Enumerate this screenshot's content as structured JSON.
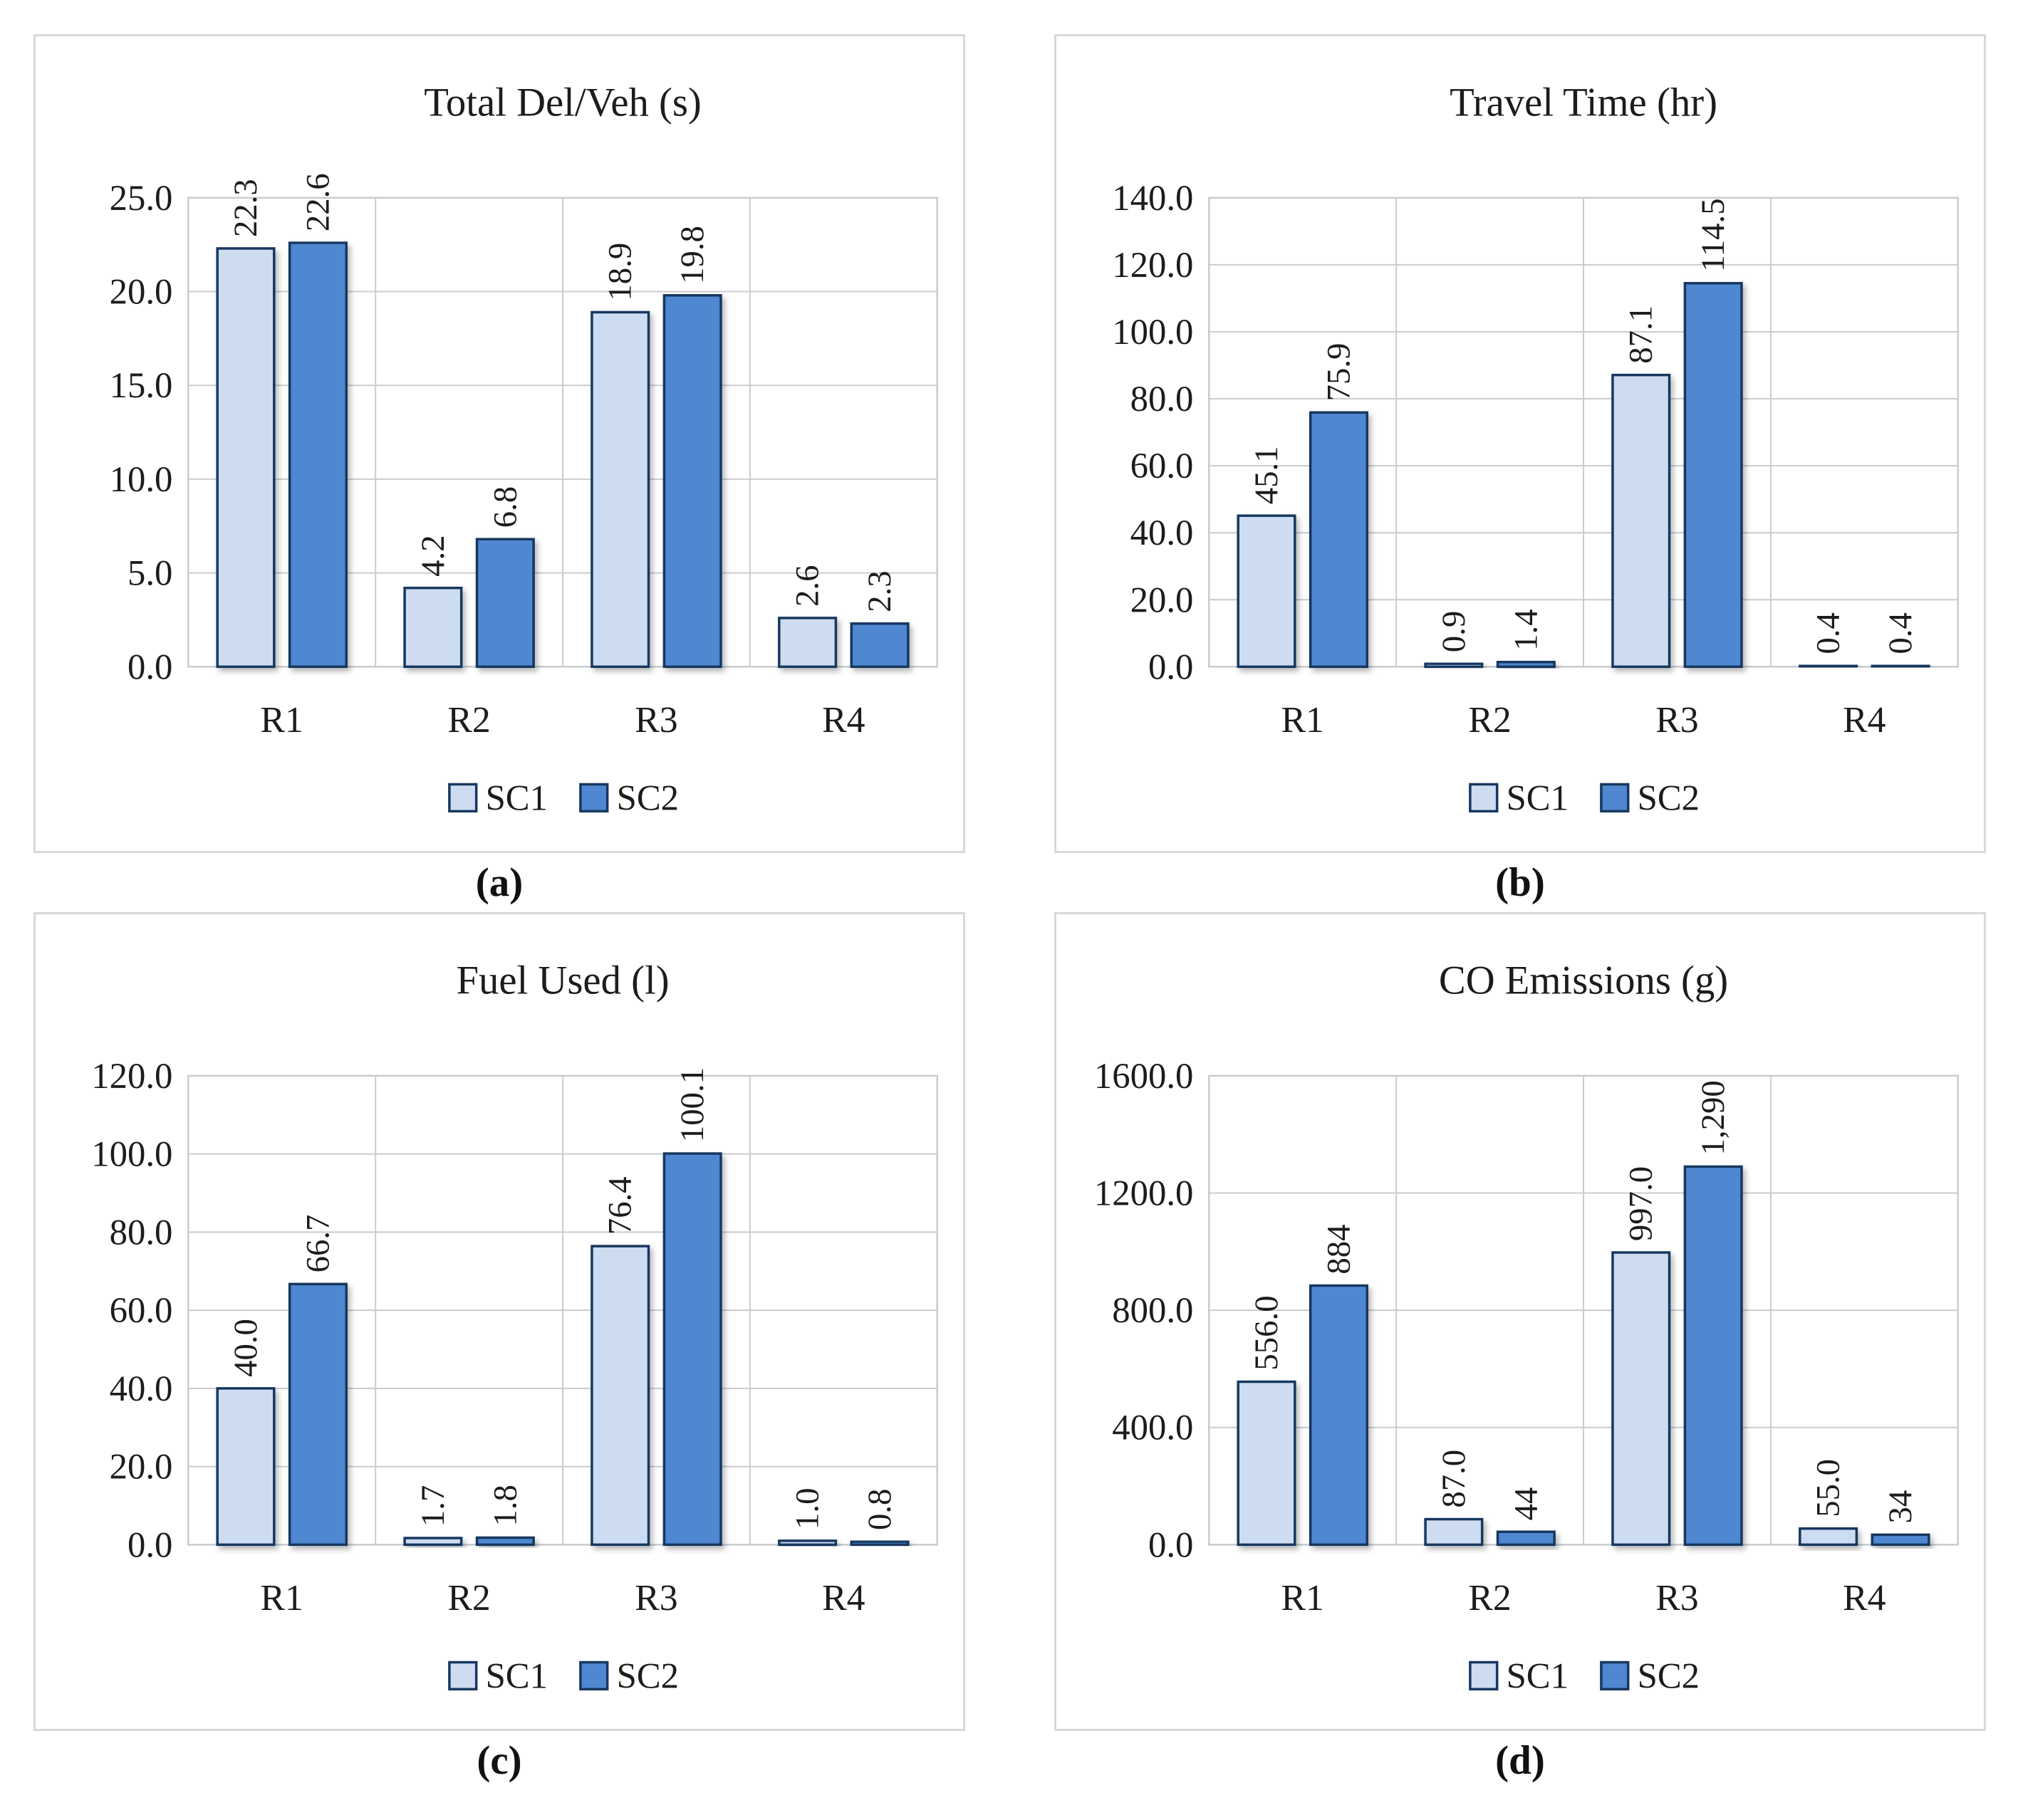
{
  "colors": {
    "sc1_fill": "#cddcf1",
    "sc2_fill": "#4f87d0",
    "bar_border": "#17375e",
    "grid": "#c9cccf",
    "panel_border": "#d8d8d8",
    "text": "#1c1c1c"
  },
  "chart_data": [
    {
      "type": "bar",
      "panel": "a",
      "title": "Total Del/Veh (s)",
      "caption": "(a)",
      "categories": [
        "R1",
        "R2",
        "R3",
        "R4"
      ],
      "series": [
        {
          "name": "SC1",
          "values": [
            22.3,
            4.2,
            18.9,
            2.6
          ],
          "labels": [
            "22.3",
            "4.2",
            "18.9",
            "2.6"
          ]
        },
        {
          "name": "SC2",
          "values": [
            22.6,
            6.8,
            19.8,
            2.3
          ],
          "labels": [
            "22.6",
            "6.8",
            "19.8",
            "2.3"
          ]
        }
      ],
      "xlabel": "",
      "ylabel": "",
      "ylim": [
        0,
        25
      ],
      "ytick_step": 5,
      "ytick_labels": [
        "0.0",
        "5.0",
        "10.0",
        "15.0",
        "20.0",
        "25.0"
      ],
      "grid": true,
      "legend_position": "bottom"
    },
    {
      "type": "bar",
      "panel": "b",
      "title": "Travel Time (hr)",
      "caption": "(b)",
      "categories": [
        "R1",
        "R2",
        "R3",
        "R4"
      ],
      "series": [
        {
          "name": "SC1",
          "values": [
            45.1,
            0.9,
            87.1,
            0.4
          ],
          "labels": [
            "45.1",
            "0.9",
            "87.1",
            "0.4"
          ]
        },
        {
          "name": "SC2",
          "values": [
            75.9,
            1.4,
            114.5,
            0.4
          ],
          "labels": [
            "75.9",
            "1.4",
            "114.5",
            "0.4"
          ]
        }
      ],
      "xlabel": "",
      "ylabel": "",
      "ylim": [
        0,
        140
      ],
      "ytick_step": 20,
      "ytick_labels": [
        "0.0",
        "20.0",
        "40.0",
        "60.0",
        "80.0",
        "100.0",
        "120.0",
        "140.0"
      ],
      "grid": true,
      "legend_position": "bottom"
    },
    {
      "type": "bar",
      "panel": "c",
      "title": "Fuel Used (l)",
      "caption": "(c)",
      "categories": [
        "R1",
        "R2",
        "R3",
        "R4"
      ],
      "series": [
        {
          "name": "SC1",
          "values": [
            40.0,
            1.7,
            76.4,
            1.0
          ],
          "labels": [
            "40.0",
            "1.7",
            "76.4",
            "1.0"
          ]
        },
        {
          "name": "SC2",
          "values": [
            66.7,
            1.8,
            100.1,
            0.8
          ],
          "labels": [
            "66.7",
            "1.8",
            "100.1",
            "0.8"
          ]
        }
      ],
      "xlabel": "",
      "ylabel": "",
      "ylim": [
        0,
        120
      ],
      "ytick_step": 20,
      "ytick_labels": [
        "0.0",
        "20.0",
        "40.0",
        "60.0",
        "80.0",
        "100.0",
        "120.0"
      ],
      "grid": true,
      "legend_position": "bottom"
    },
    {
      "type": "bar",
      "panel": "d",
      "title": "CO Emissions (g)",
      "caption": "(d)",
      "categories": [
        "R1",
        "R2",
        "R3",
        "R4"
      ],
      "series": [
        {
          "name": "SC1",
          "values": [
            556.0,
            87.0,
            997.0,
            55.0
          ],
          "labels": [
            "556.0",
            "87.0",
            "997.0",
            "55.0"
          ]
        },
        {
          "name": "SC2",
          "values": [
            884,
            44,
            1290,
            34
          ],
          "labels": [
            "884",
            "44",
            "1,290",
            "34"
          ]
        }
      ],
      "xlabel": "",
      "ylabel": "",
      "ylim": [
        0,
        1600
      ],
      "ytick_step": 400,
      "ytick_labels": [
        "0.0",
        "400.0",
        "800.0",
        "1200.0",
        "1600.0"
      ],
      "grid": true,
      "legend_position": "bottom"
    }
  ]
}
